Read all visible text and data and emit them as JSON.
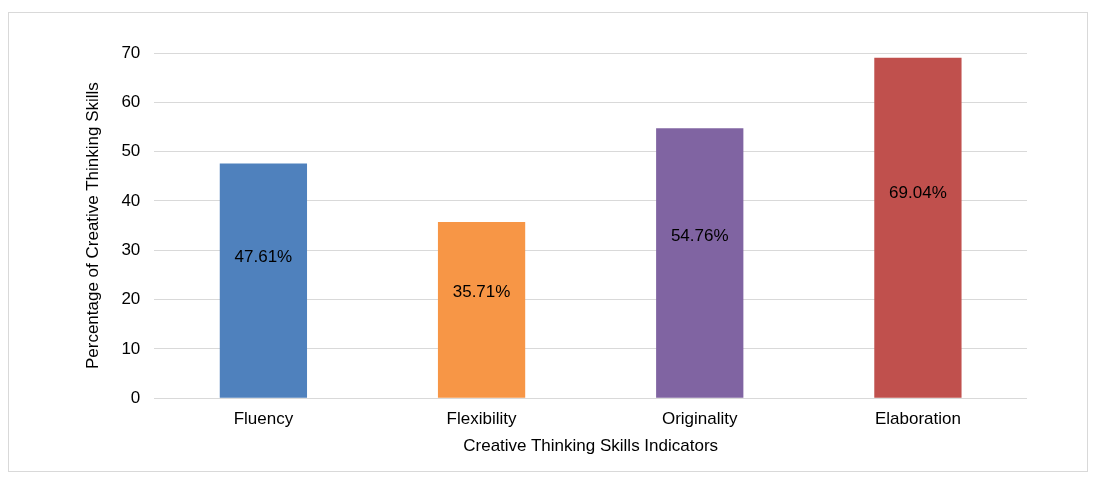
{
  "chart_data": {
    "type": "bar",
    "xlabel": "Creative Thinking Skills Indicators",
    "ylabel": "Percentage of Creative Thinking Skills",
    "categories": [
      "Fluency",
      "Flexibility",
      "Originality",
      "Elaboration"
    ],
    "values": [
      47.61,
      35.71,
      54.76,
      69.04
    ],
    "colors": [
      "#4f81bd",
      "#f79646",
      "#8064a2",
      "#c0504d"
    ],
    "value_labels": [
      "47.61%",
      "35.71%",
      "54.76%",
      "69.04%"
    ],
    "ylim": [
      0,
      70
    ],
    "yticks": [
      0,
      10,
      20,
      30,
      40,
      50,
      60,
      70
    ],
    "grid": "y",
    "legend": false
  }
}
